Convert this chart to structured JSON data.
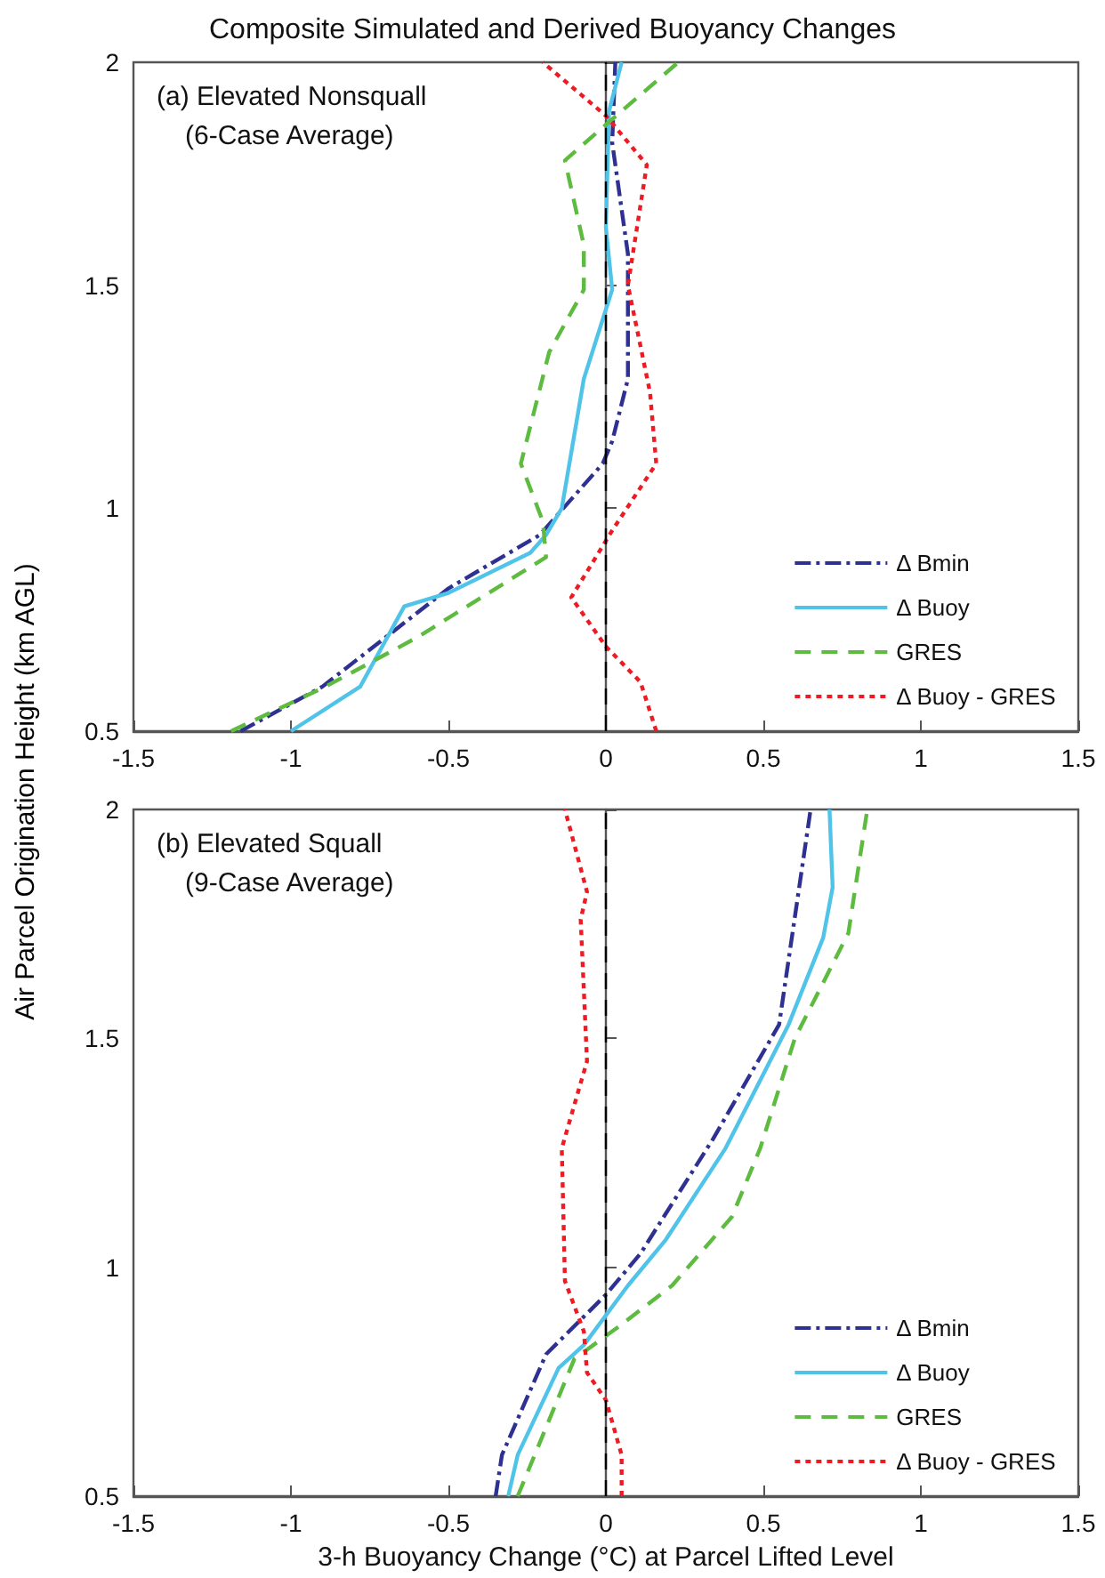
{
  "chart_data": [
    {
      "type": "line",
      "title": "Composite Simulated and Derived Buoyancy Changes",
      "ylabel": "Air Parcel Origination Height (km AGL)",
      "annotations": [
        "(a) Elevated Nonsquall",
        "(6-Case Average)"
      ],
      "xlim": [
        -1.5,
        1.5
      ],
      "xticks": [
        -1.5,
        -1,
        -0.5,
        0,
        0.5,
        1,
        1.5
      ],
      "ylim": [
        0.5,
        2
      ],
      "yticks": [
        0.5,
        1,
        1.5,
        2
      ],
      "grid": false,
      "legend": "bottom right",
      "marker": "none",
      "ref_lines": [
        {
          "axis": "x",
          "value": 0,
          "color": "#000000",
          "line_style": "dashed"
        }
      ],
      "series": [
        {
          "name": "Δ Bmin",
          "color": "#2e3192",
          "line_style": "dashdot",
          "x": [
            -1.16,
            -0.9,
            -0.5,
            -0.21,
            -0.01,
            0.02,
            0.07,
            0.07,
            0.02,
            0.03
          ],
          "values": [
            0.5,
            0.6,
            0.82,
            0.94,
            1.1,
            1.15,
            1.29,
            1.57,
            1.82,
            2
          ]
        },
        {
          "name": "Δ Buoy",
          "color": "#4fc3e8",
          "line_style": "solid",
          "x": [
            -1,
            -0.78,
            -0.64,
            -0.5,
            -0.24,
            -0.19,
            -0.14,
            -0.07,
            0.02,
            0,
            0.01,
            0.05
          ],
          "values": [
            0.5,
            0.6,
            0.78,
            0.81,
            0.9,
            0.94,
            1,
            1.29,
            1.49,
            1.63,
            1.89,
            2
          ]
        },
        {
          "name": "GRES",
          "color": "#5dbb3f",
          "line_style": "dashed",
          "x": [
            -1.19,
            -0.89,
            -0.6,
            -0.19,
            -0.2,
            -0.27,
            -0.18,
            -0.07,
            -0.07,
            -0.13,
            0,
            0.23
          ],
          "values": [
            0.5,
            0.6,
            0.71,
            0.89,
            0.97,
            1.1,
            1.35,
            1.49,
            1.59,
            1.78,
            1.86,
            2
          ]
        },
        {
          "name": "Δ Buoy - GRES",
          "color": "#ed1c24",
          "line_style": "dotted",
          "x": [
            0.16,
            0.11,
            0,
            -0.11,
            0.02,
            0.16,
            0.14,
            0.07,
            0.13,
            0,
            -0.2
          ],
          "values": [
            0.5,
            0.61,
            0.69,
            0.8,
            0.95,
            1.1,
            1.26,
            1.5,
            1.77,
            1.88,
            2
          ]
        }
      ]
    },
    {
      "type": "line",
      "xlabel": "3-h Buoyancy Change (°C) at Parcel Lifted Level",
      "annotations": [
        "(b) Elevated Squall",
        "(9-Case Average)"
      ],
      "xlim": [
        -1.5,
        1.5
      ],
      "xticks": [
        -1.5,
        -1,
        -0.5,
        0,
        0.5,
        1,
        1.5
      ],
      "ylim": [
        0.5,
        2
      ],
      "yticks": [
        0.5,
        1,
        1.5,
        2
      ],
      "grid": false,
      "legend": "bottom right",
      "marker": "none",
      "ref_lines": [
        {
          "axis": "x",
          "value": 0,
          "color": "#000000",
          "line_style": "dashed"
        }
      ],
      "series": [
        {
          "name": "Δ Bmin",
          "color": "#2e3192",
          "line_style": "dashdot",
          "x": [
            -0.35,
            -0.33,
            -0.19,
            0,
            0.11,
            0.34,
            0.55,
            0.65
          ],
          "values": [
            0.5,
            0.59,
            0.81,
            0.94,
            1.03,
            1.28,
            1.53,
            2
          ]
        },
        {
          "name": "Δ Buoy",
          "color": "#4fc3e8",
          "line_style": "solid",
          "x": [
            -0.31,
            -0.28,
            -0.15,
            -0.07,
            0.07,
            0.19,
            0.38,
            0.58,
            0.69,
            0.72,
            0.71
          ],
          "values": [
            0.5,
            0.59,
            0.78,
            0.83,
            0.96,
            1.06,
            1.26,
            1.53,
            1.72,
            1.83,
            2
          ]
        },
        {
          "name": "GRES",
          "color": "#5dbb3f",
          "line_style": "dashed",
          "x": [
            -0.28,
            -0.1,
            0.04,
            0.21,
            0.4,
            0.49,
            0.6,
            0.77,
            0.83
          ],
          "values": [
            0.5,
            0.8,
            0.87,
            0.96,
            1.11,
            1.26,
            1.5,
            1.73,
            2
          ]
        },
        {
          "name": "Δ Buoy - GRES",
          "color": "#ed1c24",
          "line_style": "dotted",
          "x": [
            0.05,
            0.05,
            0,
            -0.06,
            -0.07,
            -0.13,
            -0.14,
            -0.06,
            -0.08,
            -0.06,
            -0.13
          ],
          "values": [
            0.5,
            0.59,
            0.71,
            0.77,
            0.86,
            0.97,
            1.26,
            1.45,
            1.76,
            1.82,
            2
          ]
        }
      ]
    }
  ]
}
